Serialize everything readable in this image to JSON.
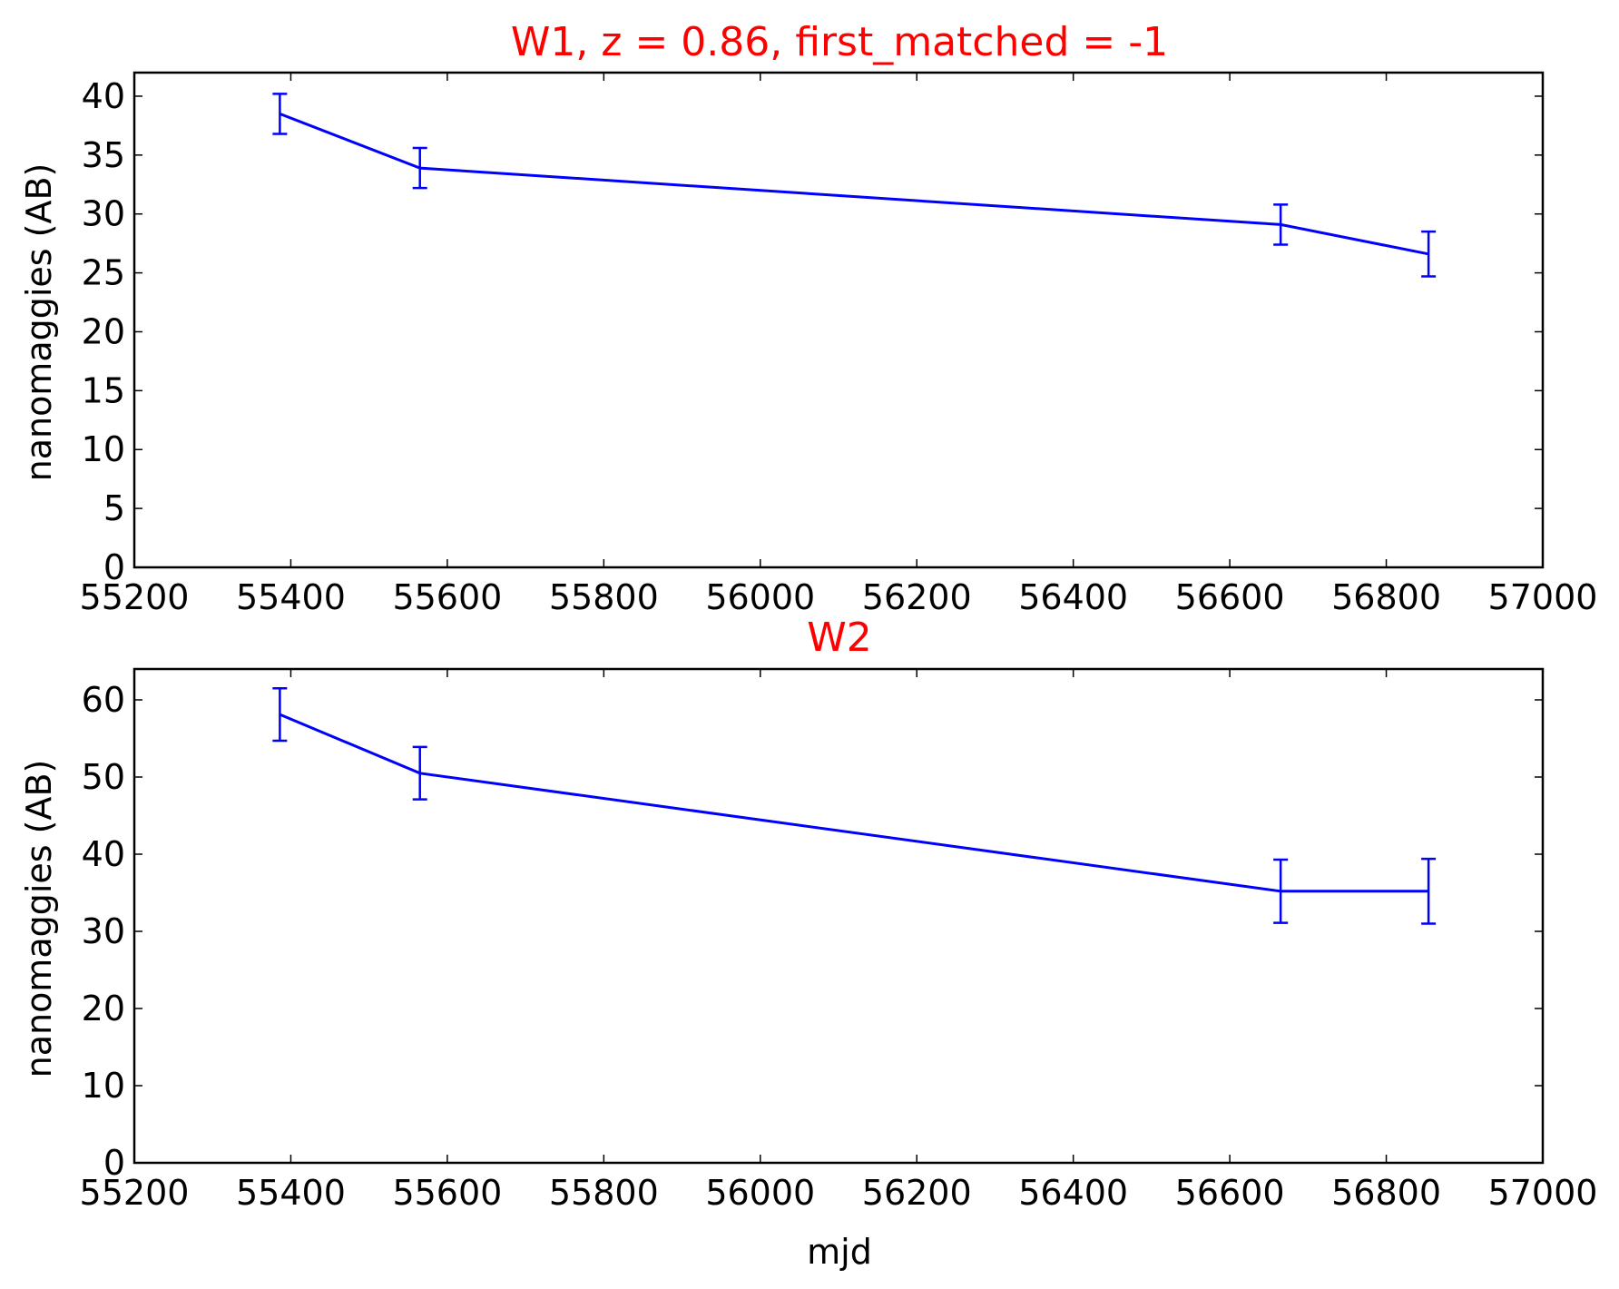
{
  "colors": {
    "background": "#ffffff",
    "axes": "#000000",
    "series": "#0000ff",
    "title": "#ff0000"
  },
  "chart_data": [
    {
      "type": "line",
      "title": "W1, z = 0.86, first_matched = -1",
      "xlabel": "",
      "ylabel": "nanomaggies (AB)",
      "xlim": [
        55200,
        57000
      ],
      "ylim": [
        0,
        42
      ],
      "xticks": [
        55200,
        55400,
        55600,
        55800,
        56000,
        56200,
        56400,
        56600,
        56800,
        57000
      ],
      "yticks": [
        0,
        5,
        10,
        15,
        20,
        25,
        30,
        35,
        40
      ],
      "grid": false,
      "series": [
        {
          "x": [
            55386,
            55565,
            56665,
            56854
          ],
          "y": [
            38.5,
            33.9,
            29.1,
            26.6
          ],
          "yerr": [
            1.7,
            1.7,
            1.7,
            1.9
          ]
        }
      ]
    },
    {
      "type": "line",
      "title": "W2",
      "xlabel": "mjd",
      "ylabel": "nanomaggies (AB)",
      "xlim": [
        55200,
        57000
      ],
      "ylim": [
        0,
        64
      ],
      "xticks": [
        55200,
        55400,
        55600,
        55800,
        56000,
        56200,
        56400,
        56600,
        56800,
        57000
      ],
      "yticks": [
        0,
        10,
        20,
        30,
        40,
        50,
        60
      ],
      "grid": false,
      "series": [
        {
          "x": [
            55386,
            55565,
            56665,
            56854
          ],
          "y": [
            58.1,
            50.5,
            35.2,
            35.2
          ],
          "yerr": [
            3.4,
            3.4,
            4.1,
            4.2
          ]
        }
      ]
    }
  ]
}
